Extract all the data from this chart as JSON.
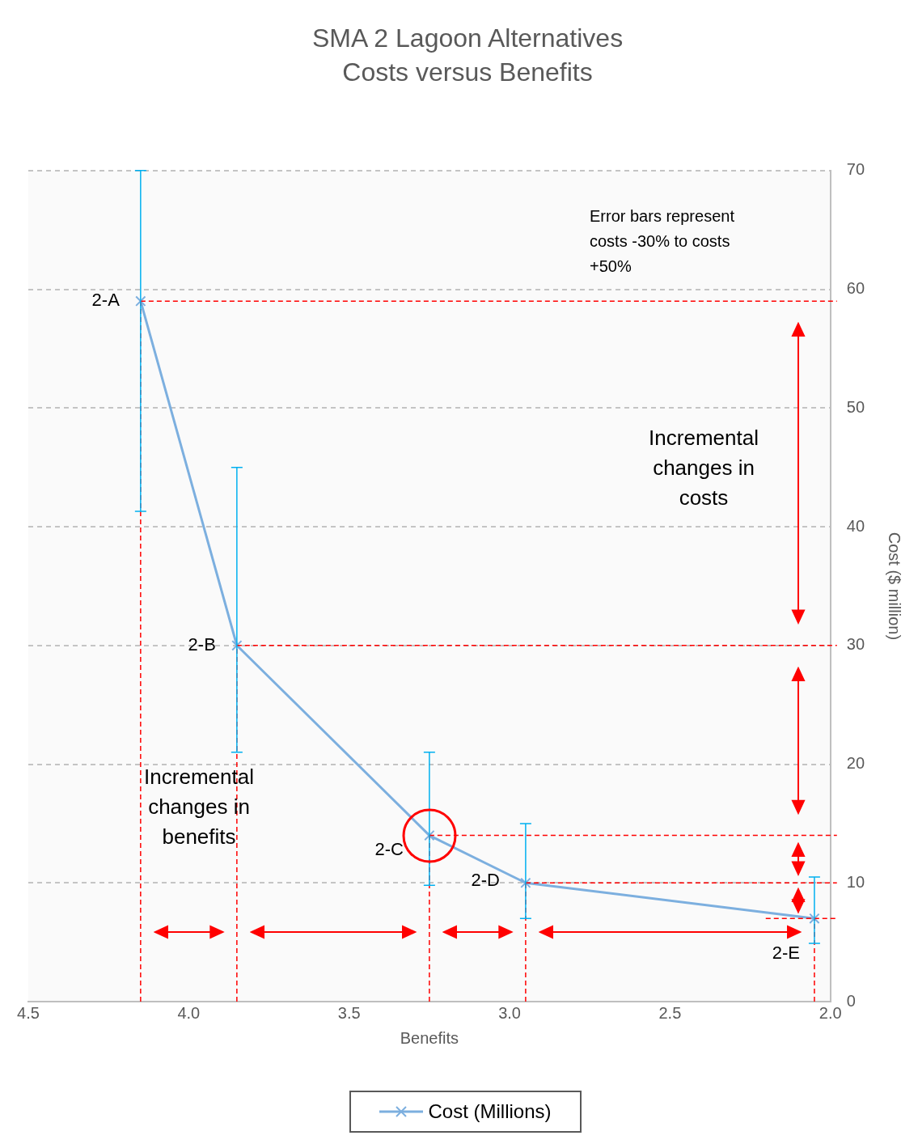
{
  "chart_data": {
    "type": "line",
    "title": "SMA 2 Lagoon Alternatives",
    "subtitle": "Costs versus Benefits",
    "xlabel": "Benefits",
    "ylabel": "Cost ($ million)",
    "x": [
      4.15,
      3.85,
      3.25,
      2.95,
      2.05
    ],
    "series": [
      {
        "name": "Cost (Millions)",
        "color": "#7cafdf",
        "values": [
          59,
          30,
          14,
          10,
          7
        ],
        "errors": [
          [
            41.3,
            70
          ],
          [
            21,
            45
          ],
          [
            9.8,
            21
          ],
          [
            7,
            15
          ],
          [
            4.9,
            10.5
          ]
        ]
      }
    ],
    "xlim": [
      4.5,
      2.0
    ],
    "xticks": [
      {
        "value": 4.5,
        "label": "4.5"
      },
      {
        "value": 4.0,
        "label": "4.0"
      },
      {
        "value": 3.5,
        "label": "3.5"
      },
      {
        "value": 3.0,
        "label": "3.0"
      },
      {
        "value": 2.5,
        "label": "2.5"
      },
      {
        "value": 2.0,
        "label": "2.0"
      }
    ],
    "ylim": [
      0,
      70
    ],
    "yticks": [
      0,
      10,
      20,
      30,
      40,
      50,
      60,
      70
    ],
    "grid": "y",
    "legend": "bottom",
    "marker": "cross",
    "line_style": "solid",
    "ref_lines": [
      {
        "axis": "x",
        "value": 4.15,
        "color": "#ff0000",
        "line_style": "dashed"
      },
      {
        "axis": "x",
        "value": 3.85,
        "color": "#ff0000",
        "line_style": "dashed"
      },
      {
        "axis": "x",
        "value": 3.25,
        "color": "#ff0000",
        "line_style": "dashed"
      },
      {
        "axis": "x",
        "value": 2.95,
        "color": "#ff0000",
        "line_style": "dashed"
      },
      {
        "axis": "x",
        "value": 2.05,
        "color": "#ff0000",
        "line_style": "dashed"
      },
      {
        "axis": "y",
        "value": 59,
        "color": "#ff0000",
        "line_style": "dashed"
      },
      {
        "axis": "y",
        "value": 30,
        "color": "#ff0000",
        "line_style": "dashed"
      },
      {
        "axis": "y",
        "value": 14,
        "color": "#ff0000",
        "line_style": "dashed"
      },
      {
        "axis": "y",
        "value": 10,
        "color": "#ff0000",
        "line_style": "dashed"
      },
      {
        "axis": "y",
        "value": 7,
        "color": "#ff0000",
        "line_style": "dashed"
      }
    ],
    "annotations": [
      {
        "text": "2-A",
        "x": 4.15,
        "y": 59
      },
      {
        "text": "2-B",
        "x": 3.85,
        "y": 30
      },
      {
        "text": "2-C",
        "x": 3.25,
        "y": 14
      },
      {
        "text": "2-D",
        "x": 2.95,
        "y": 10
      },
      {
        "text": "2-E",
        "x": 2.05,
        "y": 7
      },
      "Error bars represent costs -30% to costs +50%",
      "Incremental changes in costs",
      "Incremental changes in benefits"
    ]
  }
}
